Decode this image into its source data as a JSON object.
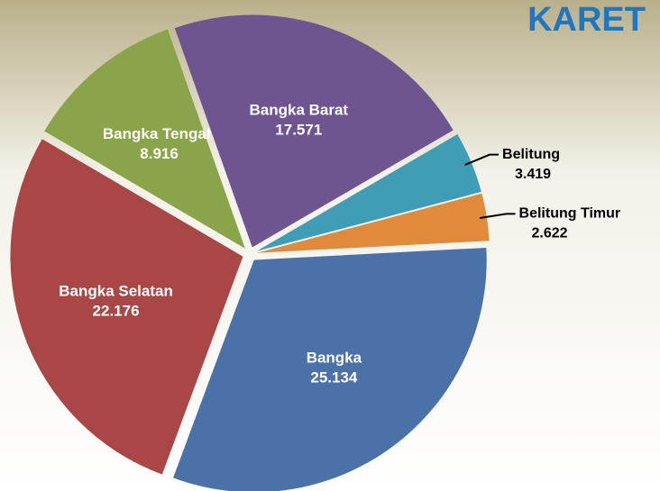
{
  "chart_data": {
    "type": "pie",
    "title": "KARET",
    "categories": [
      "Bangka",
      "Bangka Selatan",
      "Bangka Tengah",
      "Bangka Barat",
      "Belitung",
      "Belitung Timur"
    ],
    "values": [
      25.134,
      22.176,
      8.916,
      17.571,
      3.419,
      2.622
    ],
    "colors": [
      "#4a72a8",
      "#a84745",
      "#8aa44a",
      "#6f5590",
      "#3f9db5",
      "#e08a3c"
    ]
  }
}
